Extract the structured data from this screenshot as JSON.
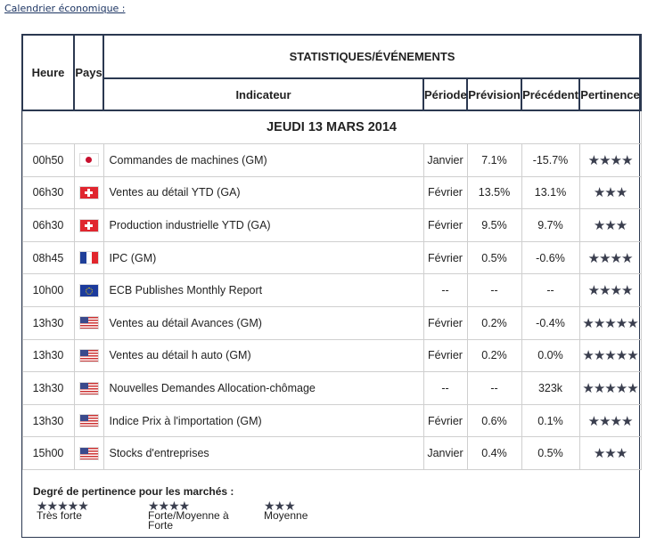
{
  "title": "Calendrier économique :",
  "headers": {
    "heure": "Heure",
    "pays": "Pays",
    "group": "STATISTIQUES/ÉVÉNEMENTS",
    "indicateur": "Indicateur",
    "periode": "Période",
    "prevision": "Prévision",
    "precedent": "Précédent",
    "pertinence": "Pertinence"
  },
  "date": "JEUDI 13 MARS 2014",
  "rows": [
    {
      "time": "00h50",
      "country": "jp",
      "indicator": "Commandes de machines (GM)",
      "period": "Janvier",
      "forecast": "7.1%",
      "previous": "-15.7%",
      "stars": "★★★★"
    },
    {
      "time": "06h30",
      "country": "ch",
      "indicator": "Ventes au détail YTD (GA)",
      "period": "Février",
      "forecast": "13.5%",
      "previous": "13.1%",
      "stars": "★★★"
    },
    {
      "time": "06h30",
      "country": "ch",
      "indicator": "Production industrielle YTD (GA)",
      "period": "Février",
      "forecast": "9.5%",
      "previous": "9.7%",
      "stars": "★★★"
    },
    {
      "time": "08h45",
      "country": "fr",
      "indicator": "IPC (GM)",
      "period": "Février",
      "forecast": "0.5%",
      "previous": "-0.6%",
      "stars": "★★★★"
    },
    {
      "time": "10h00",
      "country": "eu",
      "indicator": "ECB Publishes Monthly Report",
      "period": "--",
      "forecast": "--",
      "previous": "--",
      "stars": "★★★★"
    },
    {
      "time": "13h30",
      "country": "us",
      "indicator": "Ventes au détail Avances (GM)",
      "period": "Février",
      "forecast": "0.2%",
      "previous": "-0.4%",
      "stars": "★★★★★"
    },
    {
      "time": "13h30",
      "country": "us",
      "indicator": "Ventes au détail h auto (GM)",
      "period": "Février",
      "forecast": "0.2%",
      "previous": "0.0%",
      "stars": "★★★★★"
    },
    {
      "time": "13h30",
      "country": "us",
      "indicator": "Nouvelles Demandes Allocation-chômage",
      "period": "--",
      "forecast": "--",
      "previous": "323k",
      "stars": "★★★★★"
    },
    {
      "time": "13h30",
      "country": "us",
      "indicator": "Indice Prix à l'importation (GM)",
      "period": "Février",
      "forecast": "0.6%",
      "previous": "0.1%",
      "stars": "★★★★"
    },
    {
      "time": "15h00",
      "country": "us",
      "indicator": "Stocks d'entreprises",
      "period": "Janvier",
      "forecast": "0.4%",
      "previous": "0.5%",
      "stars": "★★★"
    }
  ],
  "legend": {
    "title": "Degré de pertinence pour les marchés :",
    "items": [
      {
        "stars": "★★★★★",
        "label": "Très forte"
      },
      {
        "stars": "★★★★",
        "label": "Forte/Moyenne à Forte"
      },
      {
        "stars": "★★★",
        "label": "Moyenne"
      }
    ]
  }
}
